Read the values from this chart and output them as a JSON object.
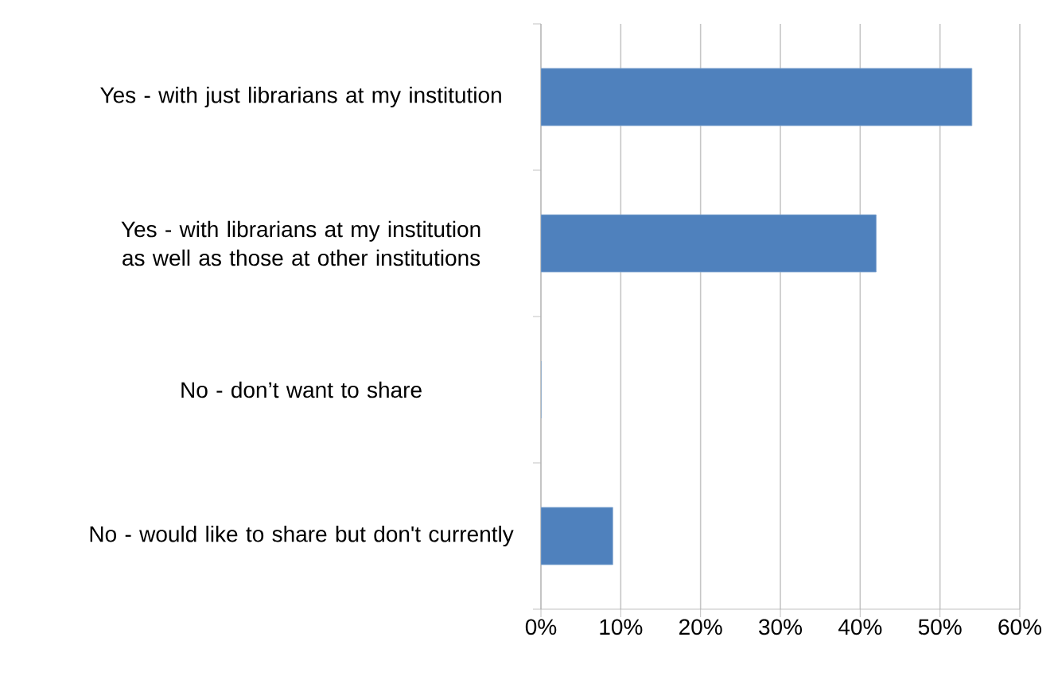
{
  "chart_data": {
    "type": "bar",
    "orientation": "horizontal",
    "categories": [
      "Yes - with just librarians at my institution",
      "Yes - with librarians at my institution as well as those at other institutions",
      "No - don’t want to share",
      "No - would like to share but don't currently"
    ],
    "values": [
      54,
      42,
      0,
      9
    ],
    "color": "#4f81bd",
    "xlim": [
      0,
      60
    ],
    "xticks": [
      {
        "value": 0,
        "label": "0%"
      },
      {
        "value": 10,
        "label": "10%"
      },
      {
        "value": 20,
        "label": "20%"
      },
      {
        "value": 30,
        "label": "30%"
      },
      {
        "value": 40,
        "label": "40%"
      },
      {
        "value": 50,
        "label": "50%"
      },
      {
        "value": 60,
        "label": "60%"
      }
    ],
    "grid": "x"
  }
}
